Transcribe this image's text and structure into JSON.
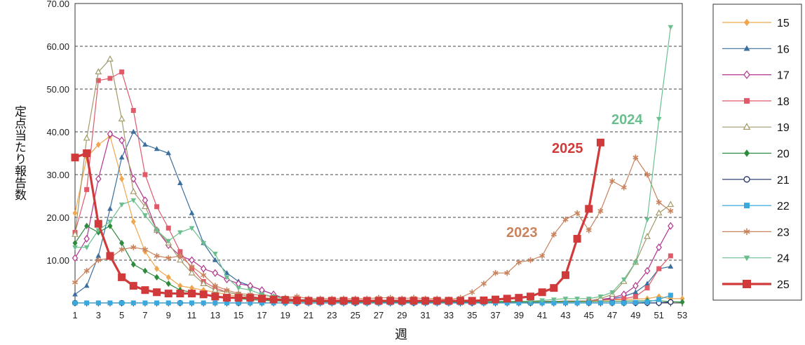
{
  "chart_data": {
    "type": "line",
    "xlabel": "週",
    "ylabel": "定点当たり報告数",
    "ylim": [
      0,
      70
    ],
    "xlim": [
      1,
      53
    ],
    "yticks": [
      "10.00",
      "20.00",
      "30.00",
      "40.00",
      "50.00",
      "60.00",
      "70.00"
    ],
    "xticks": [
      "1",
      "3",
      "5",
      "7",
      "9",
      "11",
      "13",
      "15",
      "17",
      "19",
      "21",
      "23",
      "25",
      "27",
      "29",
      "31",
      "33",
      "35",
      "37",
      "39",
      "41",
      "43",
      "45",
      "47",
      "49",
      "51",
      "53"
    ],
    "grid": "horizontal dashed",
    "legend_position": "right",
    "annotations": [
      {
        "text": "2025",
        "color": "#d03a3a"
      },
      {
        "text": "2024",
        "color": "#6bbf8e"
      },
      {
        "text": "2023",
        "color": "#c9835d"
      }
    ],
    "series": [
      {
        "name": "15",
        "color": "#f0a64e",
        "marker": "diamond",
        "width": 1.2,
        "x": [
          1,
          2,
          3,
          4,
          5,
          6,
          7,
          8,
          9,
          10,
          11,
          12,
          13,
          14,
          15,
          16,
          17,
          18,
          19,
          20,
          25,
          30,
          35,
          40,
          45,
          48,
          50,
          51,
          52,
          53
        ],
        "y": [
          21,
          34,
          37,
          39,
          29,
          19,
          12,
          8,
          6,
          4,
          3.5,
          3,
          2.5,
          2,
          1.5,
          1.2,
          1,
          0.8,
          0.6,
          0.5,
          0.3,
          0.2,
          0.2,
          0.3,
          0.5,
          0.8,
          1,
          1.5,
          1,
          1
        ]
      },
      {
        "name": "16",
        "color": "#3a6f9e",
        "marker": "triangle",
        "width": 1.2,
        "x": [
          1,
          2,
          3,
          4,
          5,
          6,
          7,
          8,
          9,
          10,
          11,
          12,
          13,
          14,
          15,
          16,
          17,
          18,
          19,
          20,
          25,
          30,
          35,
          40,
          45,
          47,
          48,
          49,
          50,
          51,
          52
        ],
        "y": [
          2,
          4,
          11,
          22,
          34,
          40,
          37,
          36,
          35,
          28,
          21,
          14,
          10,
          7,
          5,
          4,
          3,
          2,
          1,
          0.8,
          0.4,
          0.3,
          0.3,
          0.3,
          0.5,
          1,
          1.5,
          2.5,
          4.5,
          8,
          8.5
        ]
      },
      {
        "name": "17",
        "color": "#b3358f",
        "marker": "diamond-open",
        "width": 1.2,
        "x": [
          1,
          2,
          3,
          4,
          5,
          6,
          7,
          8,
          9,
          10,
          11,
          12,
          13,
          14,
          15,
          16,
          17,
          18,
          19,
          20,
          25,
          30,
          35,
          40,
          45,
          46,
          47,
          48,
          49,
          50,
          51,
          52
        ],
        "y": [
          10.5,
          15,
          29,
          39.5,
          38,
          29,
          24,
          17,
          13.5,
          11,
          10,
          8,
          7,
          5.5,
          4.5,
          4,
          3,
          2,
          1,
          0.8,
          0.4,
          0.3,
          0.3,
          0.3,
          0.5,
          0.8,
          1.2,
          2,
          4,
          7.5,
          13,
          18
        ]
      },
      {
        "name": "18",
        "color": "#e05a6a",
        "marker": "square",
        "width": 1.2,
        "x": [
          1,
          2,
          3,
          4,
          5,
          6,
          7,
          8,
          9,
          10,
          11,
          12,
          13,
          14,
          15,
          16,
          17,
          18,
          19,
          20,
          25,
          30,
          35,
          40,
          45,
          48,
          49,
          50,
          51,
          52
        ],
        "y": [
          16.5,
          26.5,
          52,
          52.5,
          54,
          45,
          30,
          22.5,
          17.5,
          12,
          8,
          5,
          3.5,
          2.5,
          2,
          1.5,
          1.2,
          1,
          0.8,
          0.6,
          0.3,
          0.2,
          0.2,
          0.3,
          0.5,
          1,
          1.5,
          3.5,
          8,
          11
        ]
      },
      {
        "name": "19",
        "color": "#a39a6a",
        "marker": "triangle-open",
        "width": 1.2,
        "x": [
          1,
          2,
          3,
          4,
          5,
          6,
          7,
          8,
          9,
          10,
          11,
          12,
          13,
          14,
          15,
          16,
          17,
          18,
          19,
          20,
          25,
          30,
          35,
          40,
          45,
          46,
          47,
          48,
          49,
          50,
          51,
          52
        ],
        "y": [
          16,
          38.5,
          54,
          57,
          43,
          26,
          22.5,
          17,
          14,
          10,
          7,
          4.5,
          3,
          2.5,
          2,
          1.5,
          1.2,
          1,
          0.8,
          0.6,
          0.3,
          0.2,
          0.2,
          0.3,
          0.5,
          1,
          2,
          5,
          9.5,
          15.5,
          21,
          23
        ]
      },
      {
        "name": "20",
        "color": "#2e8b3e",
        "marker": "diamond",
        "width": 1.2,
        "x": [
          1,
          2,
          3,
          4,
          5,
          6,
          7,
          8,
          9,
          10,
          11,
          12,
          13,
          14,
          15,
          16,
          17,
          18,
          19,
          20,
          25,
          30,
          35,
          40,
          45,
          50,
          51,
          52,
          53
        ],
        "y": [
          14,
          18,
          16.5,
          18,
          14,
          9,
          7.5,
          6,
          4.5,
          3,
          2.5,
          2,
          1.5,
          1.2,
          1,
          0.8,
          0.6,
          0.5,
          0.4,
          0.3,
          0.2,
          0.2,
          0.2,
          0.2,
          0.3,
          0.5,
          0.5,
          0.3,
          0.2
        ]
      },
      {
        "name": "21",
        "color": "#1f2f6a",
        "marker": "circle-open",
        "width": 1.2,
        "x": [
          1,
          5,
          10,
          15,
          20,
          25,
          30,
          35,
          40,
          45,
          47,
          48,
          49,
          50,
          51,
          52
        ],
        "y": [
          0,
          0,
          0,
          0,
          0,
          0,
          0,
          0,
          0,
          0,
          0,
          0,
          0,
          0,
          0,
          0.2
        ]
      },
      {
        "name": "22",
        "color": "#3aa8dc",
        "marker": "square",
        "width": 1.2,
        "x": [
          1,
          2,
          3,
          4,
          5,
          6,
          7,
          8,
          9,
          10,
          11,
          12,
          13,
          14,
          15,
          16,
          17,
          18,
          19,
          20,
          21,
          22,
          23,
          24,
          25,
          26,
          27,
          28,
          29,
          30,
          31,
          32,
          33,
          34,
          35,
          36,
          37,
          38,
          39,
          40,
          41,
          42,
          43,
          44,
          45,
          46,
          47,
          48,
          49,
          50,
          51,
          52
        ],
        "y": [
          0,
          0,
          0,
          0,
          0,
          0,
          0,
          0,
          0,
          0,
          0,
          0,
          0,
          0,
          0,
          0,
          0,
          0,
          0,
          0,
          0,
          0,
          0,
          0,
          0,
          0,
          0,
          0,
          0,
          0,
          0,
          0,
          0,
          0,
          0,
          0,
          0,
          0,
          0,
          0,
          0,
          0,
          0,
          0,
          0,
          0,
          0,
          0,
          0.1,
          0.2,
          0.8,
          1.8
        ]
      },
      {
        "name": "23",
        "color": "#c9835d",
        "marker": "asterisk",
        "width": 1.2,
        "x": [
          1,
          2,
          3,
          4,
          5,
          6,
          7,
          8,
          9,
          10,
          11,
          12,
          13,
          14,
          15,
          16,
          17,
          18,
          19,
          20,
          21,
          22,
          23,
          24,
          25,
          26,
          27,
          28,
          29,
          30,
          31,
          32,
          33,
          34,
          35,
          36,
          37,
          38,
          39,
          40,
          41,
          42,
          43,
          44,
          45,
          46,
          47,
          48,
          49,
          50,
          51,
          52
        ],
        "y": [
          4.8,
          7.5,
          10,
          10.5,
          12.5,
          13,
          12.5,
          11,
          10.5,
          11,
          8.5,
          6.5,
          4,
          3,
          2.2,
          2,
          1.8,
          1.5,
          1.2,
          1.5,
          1,
          1,
          1,
          1,
          1,
          1,
          1.2,
          1.2,
          1,
          1.2,
          1,
          1,
          0.8,
          1.2,
          2.5,
          4.5,
          7,
          7,
          9.5,
          10,
          11,
          16,
          19.5,
          21,
          17,
          21.5,
          28.5,
          27,
          34,
          30,
          23.5,
          21.5
        ]
      },
      {
        "name": "24",
        "color": "#6bbf8e",
        "marker": "triangle-down",
        "width": 1.2,
        "x": [
          1,
          2,
          3,
          4,
          5,
          6,
          7,
          8,
          9,
          10,
          11,
          12,
          13,
          14,
          15,
          16,
          17,
          18,
          19,
          20,
          25,
          30,
          35,
          40,
          41,
          42,
          43,
          44,
          45,
          46,
          47,
          48,
          49,
          50,
          51,
          52
        ],
        "y": [
          13,
          13,
          17,
          19,
          23,
          24,
          20.5,
          17,
          14.5,
          16.5,
          17.5,
          14,
          11.5,
          6,
          3.5,
          3,
          2,
          1.5,
          1,
          0.8,
          0.5,
          0.4,
          0.4,
          0.4,
          0.6,
          0.8,
          1,
          1,
          1,
          1.5,
          2.5,
          5.5,
          9.5,
          19.5,
          43,
          64.5
        ]
      },
      {
        "name": "25",
        "color": "#d03a3a",
        "marker": "square",
        "width": 3.2,
        "x": [
          1,
          2,
          3,
          4,
          5,
          6,
          7,
          8,
          9,
          10,
          11,
          12,
          13,
          14,
          15,
          16,
          17,
          18,
          19,
          20,
          21,
          22,
          23,
          24,
          25,
          26,
          27,
          28,
          29,
          30,
          31,
          32,
          33,
          34,
          35,
          36,
          37,
          38,
          39,
          40,
          41,
          42,
          43,
          44,
          45,
          46
        ],
        "y": [
          34,
          35,
          18.5,
          11,
          6,
          4,
          3,
          2.5,
          2.2,
          2.2,
          2.2,
          2,
          1.5,
          1.2,
          1.2,
          1.2,
          1,
          0.8,
          0.7,
          0.6,
          0.5,
          0.5,
          0.5,
          0.5,
          0.5,
          0.5,
          0.5,
          0.5,
          0.5,
          0.5,
          0.5,
          0.5,
          0.5,
          0.5,
          0.5,
          0.6,
          0.8,
          1,
          1.2,
          1.5,
          2.5,
          3.5,
          6.5,
          15,
          22,
          37.5
        ]
      }
    ]
  }
}
